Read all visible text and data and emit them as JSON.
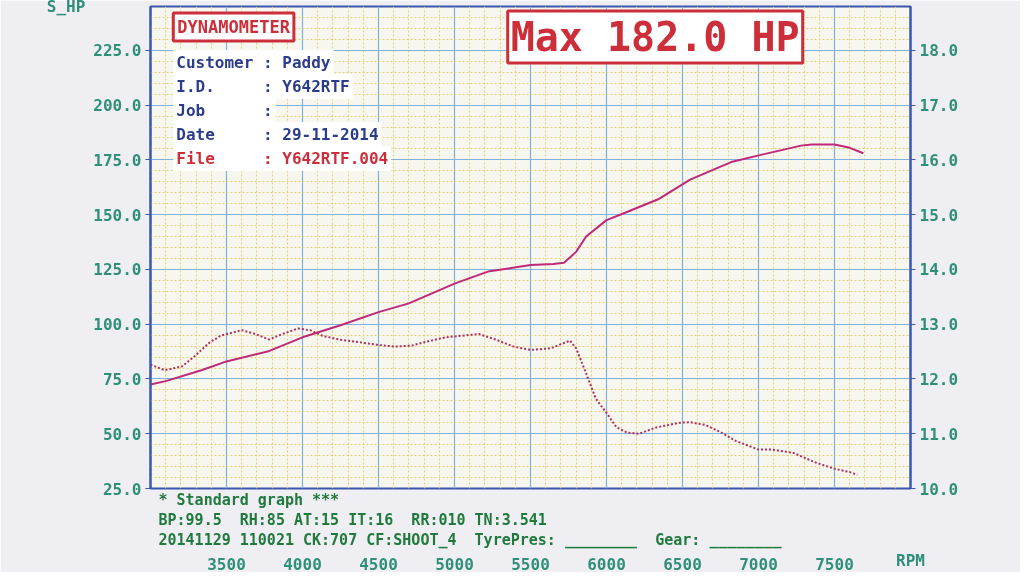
{
  "chart_data": {
    "type": "line",
    "title": "DYNAMOMETER",
    "xlabel": "RPM",
    "ylabel": "S_HP",
    "xlim": [
      3000,
      8000
    ],
    "xticks": [
      {
        "value": 3100,
        "label": null
      },
      {
        "value": 3200,
        "label": null
      },
      {
        "value": 3300,
        "label": null
      },
      {
        "value": 3400,
        "label": null
      },
      3500,
      {
        "value": 3600,
        "label": null
      },
      {
        "value": 3700,
        "label": null
      },
      {
        "value": 3800,
        "label": null
      },
      {
        "value": 3900,
        "label": null
      },
      4000,
      {
        "value": 4100,
        "label": null
      },
      {
        "value": 4200,
        "label": null
      },
      {
        "value": 4300,
        "label": null
      },
      {
        "value": 4400,
        "label": null
      },
      4500,
      {
        "value": 4600,
        "label": null
      },
      {
        "value": 4700,
        "label": null
      },
      {
        "value": 4800,
        "label": null
      },
      {
        "value": 4900,
        "label": null
      },
      5000,
      {
        "value": 5100,
        "label": null
      },
      {
        "value": 5200,
        "label": null
      },
      {
        "value": 5300,
        "label": null
      },
      {
        "value": 5400,
        "label": null
      },
      5500,
      {
        "value": 5600,
        "label": null
      },
      {
        "value": 5700,
        "label": null
      },
      {
        "value": 5800,
        "label": null
      },
      {
        "value": 5900,
        "label": null
      },
      6000,
      {
        "value": 6100,
        "label": null
      },
      {
        "value": 6200,
        "label": null
      },
      {
        "value": 6300,
        "label": null
      },
      {
        "value": 6400,
        "label": null
      },
      6500,
      {
        "value": 6600,
        "label": null
      },
      {
        "value": 6700,
        "label": null
      },
      {
        "value": 6800,
        "label": null
      },
      {
        "value": 6900,
        "label": null
      },
      7000,
      {
        "value": 7100,
        "label": null
      },
      {
        "value": 7200,
        "label": null
      },
      {
        "value": 7300,
        "label": null
      },
      {
        "value": 7400,
        "label": null
      },
      7500,
      {
        "value": 7600,
        "label": null
      },
      {
        "value": 7700,
        "label": null
      },
      {
        "value": 7800,
        "label": null
      },
      {
        "value": 7900,
        "label": null
      }
    ],
    "ylim": [
      25,
      245
    ],
    "yticks": [
      {
        "value": 25,
        "label": "25.0"
      },
      {
        "value": 30,
        "label": null
      },
      {
        "value": 35,
        "label": null
      },
      {
        "value": 40,
        "label": null
      },
      {
        "value": 45,
        "label": null
      },
      {
        "value": 50,
        "label": "50.0"
      },
      {
        "value": 55,
        "label": null
      },
      {
        "value": 60,
        "label": null
      },
      {
        "value": 65,
        "label": null
      },
      {
        "value": 70,
        "label": null
      },
      {
        "value": 75,
        "label": "75.0"
      },
      {
        "value": 80,
        "label": null
      },
      {
        "value": 85,
        "label": null
      },
      {
        "value": 90,
        "label": null
      },
      {
        "value": 95,
        "label": null
      },
      {
        "value": 100,
        "label": "100.0"
      },
      {
        "value": 105,
        "label": null
      },
      {
        "value": 110,
        "label": null
      },
      {
        "value": 115,
        "label": null
      },
      {
        "value": 120,
        "label": null
      },
      {
        "value": 125,
        "label": "125.0"
      },
      {
        "value": 130,
        "label": null
      },
      {
        "value": 135,
        "label": null
      },
      {
        "value": 140,
        "label": null
      },
      {
        "value": 145,
        "label": null
      },
      {
        "value": 150,
        "label": "150.0"
      },
      {
        "value": 155,
        "label": null
      },
      {
        "value": 160,
        "label": null
      },
      {
        "value": 165,
        "label": null
      },
      {
        "value": 170,
        "label": null
      },
      {
        "value": 175,
        "label": "175.0"
      },
      {
        "value": 180,
        "label": null
      },
      {
        "value": 185,
        "label": null
      },
      {
        "value": 190,
        "label": null
      },
      {
        "value": 195,
        "label": null
      },
      {
        "value": 200,
        "label": "200.0"
      },
      {
        "value": 205,
        "label": null
      },
      {
        "value": 210,
        "label": null
      },
      {
        "value": 215,
        "label": null
      },
      {
        "value": 220,
        "label": null
      },
      {
        "value": 225,
        "label": "225.0"
      },
      {
        "value": 230,
        "label": null
      },
      {
        "value": 235,
        "label": null
      },
      {
        "value": 240,
        "label": null
      }
    ],
    "y2lim": [
      10,
      18.8
    ],
    "y2ticks": [
      {
        "value": 10,
        "label": "10.0"
      },
      {
        "value": 11,
        "label": "11.0"
      },
      {
        "value": 12,
        "label": "12.0"
      },
      {
        "value": 13,
        "label": "13.0"
      },
      {
        "value": 14,
        "label": "14.0"
      },
      {
        "value": 15,
        "label": "15.0"
      },
      {
        "value": 16,
        "label": "16.0"
      },
      {
        "value": 17,
        "label": "17.0"
      },
      {
        "value": 18,
        "label": "18.0"
      }
    ],
    "grid": true,
    "series": [
      {
        "color": "#c02878",
        "line_style": "solid",
        "x": [
          3000,
          3100,
          3335,
          3500,
          3770,
          4000,
          4250,
          4500,
          4700,
          5000,
          5100,
          5220,
          5500,
          5650,
          5720,
          5800,
          5866,
          6000,
          6110,
          6340,
          6550,
          6820,
          7030,
          7280,
          7350,
          7500,
          7600,
          7690
        ],
        "values": [
          72.5,
          74,
          79,
          83,
          87.5,
          94,
          99.5,
          105.5,
          109.5,
          118.5,
          121,
          124,
          127,
          127.5,
          128,
          133,
          140,
          147.5,
          150.5,
          157,
          166,
          174,
          177.5,
          181.5,
          182.0,
          182,
          180.5,
          178
        ]
      },
      {
        "color": "#b03060",
        "line_style": "dotted",
        "axis": "y2",
        "x": [
          3000,
          3094,
          3208,
          3284,
          3386,
          3462,
          3602,
          3690,
          3779,
          3868,
          3970,
          4050,
          4130,
          4240,
          4400,
          4500,
          4610,
          4720,
          4830,
          4940,
          5050,
          5160,
          5270,
          5390,
          5500,
          5635,
          5760,
          5800,
          5866,
          5930,
          6000,
          6065,
          6135,
          6215,
          6320,
          6480,
          6550,
          6650,
          6750,
          6850,
          7000,
          7090,
          7230,
          7370,
          7500,
          7600,
          7650
        ],
        "values": [
          12.26,
          12.16,
          12.23,
          12.4,
          12.66,
          12.79,
          12.89,
          12.82,
          12.72,
          12.82,
          12.92,
          12.89,
          12.79,
          12.72,
          12.66,
          12.62,
          12.59,
          12.61,
          12.69,
          12.76,
          12.79,
          12.82,
          12.72,
          12.59,
          12.53,
          12.56,
          12.7,
          12.56,
          12.1,
          11.64,
          11.38,
          11.12,
          11.02,
          11.0,
          11.11,
          11.2,
          11.21,
          11.16,
          11.03,
          10.87,
          10.71,
          10.71,
          10.65,
          10.48,
          10.36,
          10.3,
          10.25
        ]
      }
    ],
    "annotations": [
      "Customer : Paddy",
      "I.D.     : Y642RTF",
      "Job      :",
      "Date     : 29-11-2014",
      "File     : Y642RTF.004",
      "Max 182.0 HP",
      "* Standard graph ***",
      "BP:99.5  RH:85 AT:15 IT:16  RR:010 TN:3.541",
      "20141129 110021 CK:707 CF:SHOOT_4  TyrePres: ________  Gear: ________"
    ]
  }
}
